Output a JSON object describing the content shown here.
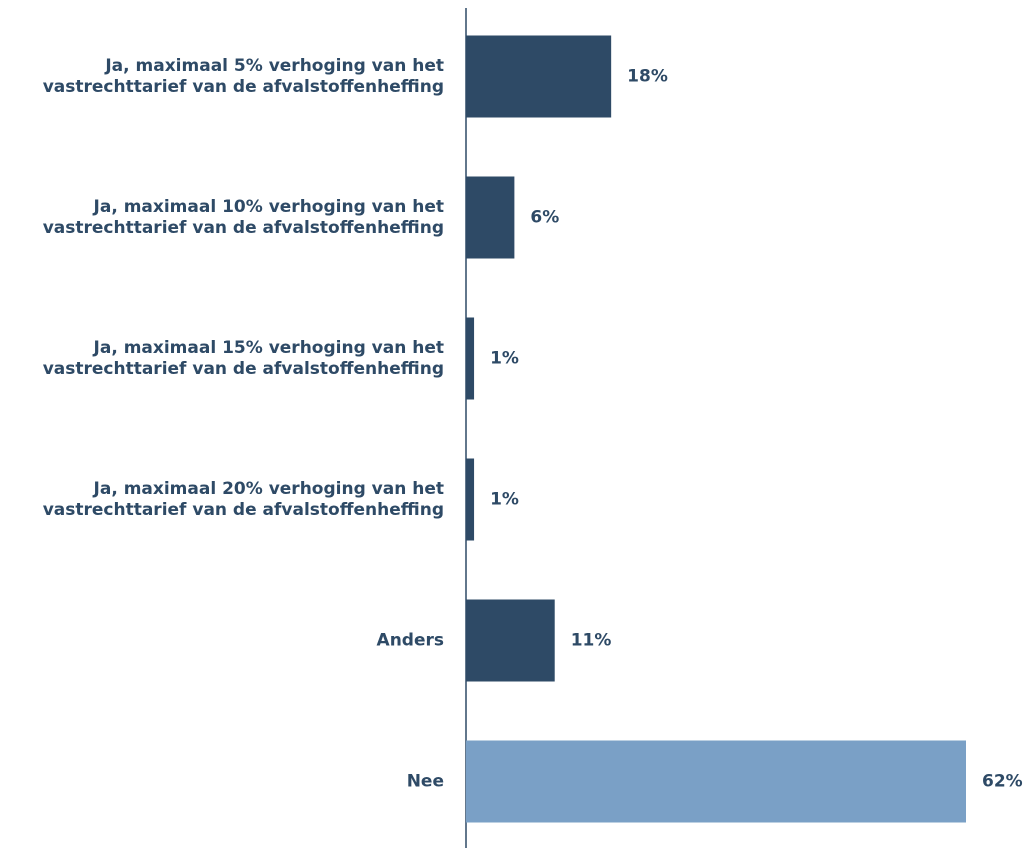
{
  "chart_data": {
    "type": "bar",
    "orientation": "horizontal",
    "categories": [
      "Ja, maximaal 5% verhoging van het vastrechttarief van de afvalstoffenheffing",
      "Ja, maximaal 10% verhoging van het vastrechttarief van de afvalstoffenheffing",
      "Ja, maximaal 15% verhoging van het vastrechttarief van de afvalstoffenheffing",
      "Ja, maximaal 20% verhoging van het vastrechttarief van de afvalstoffenheffing",
      "Anders",
      "Nee"
    ],
    "values": [
      18,
      6,
      1,
      1,
      11,
      62
    ],
    "value_labels": [
      "18%",
      "6%",
      "1%",
      "1%",
      "11%",
      "62%"
    ],
    "colors": [
      "#2e4a66",
      "#2e4a66",
      "#2e4a66",
      "#2e4a66",
      "#2e4a66",
      "#7aa0c6"
    ]
  }
}
